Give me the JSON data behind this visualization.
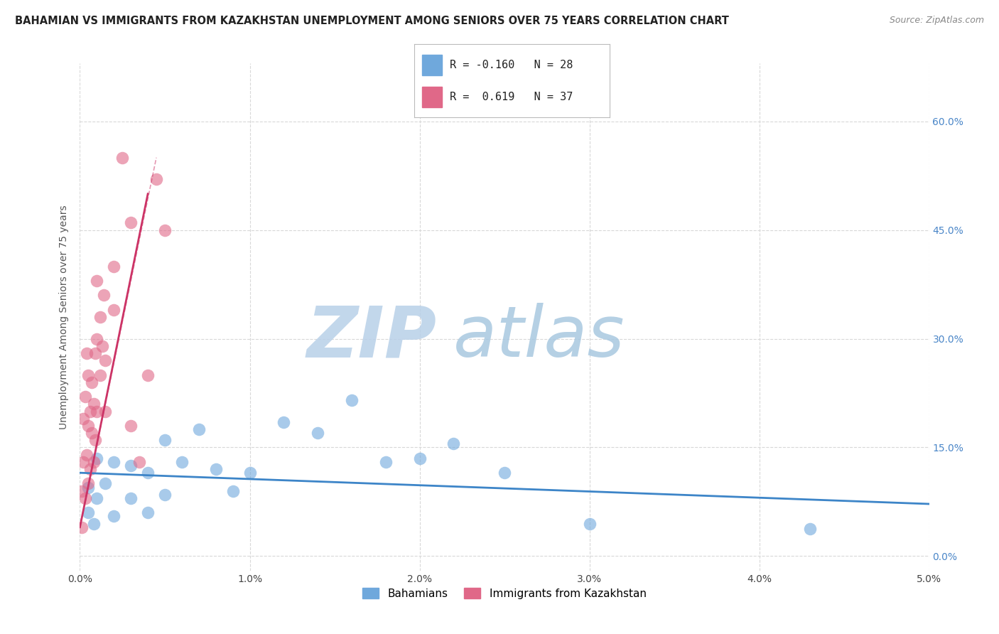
{
  "title": "BAHAMIAN VS IMMIGRANTS FROM KAZAKHSTAN UNEMPLOYMENT AMONG SENIORS OVER 75 YEARS CORRELATION CHART",
  "source": "Source: ZipAtlas.com",
  "ylabel": "Unemployment Among Seniors over 75 years",
  "xlim": [
    0.0,
    0.05
  ],
  "ylim": [
    -0.02,
    0.68
  ],
  "xticks": [
    0.0,
    0.01,
    0.02,
    0.03,
    0.04,
    0.05
  ],
  "xticklabels": [
    "0.0%",
    "1.0%",
    "2.0%",
    "3.0%",
    "4.0%",
    "5.0%"
  ],
  "ytick_values": [
    0.0,
    0.15,
    0.3,
    0.45,
    0.6
  ],
  "ytick_labels": [
    "0.0%",
    "15.0%",
    "30.0%",
    "45.0%",
    "60.0%"
  ],
  "bahamian_color": "#6fa8dc",
  "kazakh_color": "#e06888",
  "bahamian_line_color": "#3d85c8",
  "kazakh_line_color": "#cc3366",
  "bahamian_R": -0.16,
  "bahamian_N": 28,
  "kazakh_R": 0.619,
  "kazakh_N": 37,
  "bahamian_scatter_x": [
    0.0005,
    0.0005,
    0.0008,
    0.001,
    0.001,
    0.0015,
    0.002,
    0.002,
    0.003,
    0.003,
    0.004,
    0.004,
    0.005,
    0.005,
    0.006,
    0.007,
    0.008,
    0.009,
    0.01,
    0.012,
    0.014,
    0.016,
    0.018,
    0.02,
    0.022,
    0.025,
    0.03,
    0.043
  ],
  "bahamian_scatter_y": [
    0.095,
    0.06,
    0.045,
    0.135,
    0.08,
    0.1,
    0.13,
    0.055,
    0.125,
    0.08,
    0.115,
    0.06,
    0.16,
    0.085,
    0.13,
    0.175,
    0.12,
    0.09,
    0.115,
    0.185,
    0.17,
    0.215,
    0.13,
    0.135,
    0.155,
    0.115,
    0.045,
    0.038
  ],
  "kazakh_scatter_x": [
    0.0001,
    0.0001,
    0.0002,
    0.0002,
    0.0003,
    0.0003,
    0.0004,
    0.0004,
    0.0005,
    0.0005,
    0.0005,
    0.0006,
    0.0006,
    0.0007,
    0.0007,
    0.0008,
    0.0008,
    0.0009,
    0.0009,
    0.001,
    0.001,
    0.001,
    0.0012,
    0.0012,
    0.0013,
    0.0014,
    0.0015,
    0.0015,
    0.002,
    0.002,
    0.0025,
    0.003,
    0.003,
    0.0035,
    0.004,
    0.0045,
    0.005
  ],
  "kazakh_scatter_y": [
    0.04,
    0.09,
    0.13,
    0.19,
    0.08,
    0.22,
    0.14,
    0.28,
    0.1,
    0.18,
    0.25,
    0.12,
    0.2,
    0.17,
    0.24,
    0.13,
    0.21,
    0.16,
    0.28,
    0.2,
    0.3,
    0.38,
    0.25,
    0.33,
    0.29,
    0.36,
    0.2,
    0.27,
    0.4,
    0.34,
    0.55,
    0.18,
    0.46,
    0.13,
    0.25,
    0.52,
    0.45
  ],
  "background_color": "#ffffff",
  "grid_color": "#d8d8d8",
  "watermark_text1": "ZIP",
  "watermark_text2": "atlas",
  "watermark_color1": "#b8d0e8",
  "watermark_color2": "#a8c8e0",
  "title_fontsize": 10.5,
  "axis_label_fontsize": 10,
  "tick_fontsize": 10,
  "legend_fontsize": 11
}
